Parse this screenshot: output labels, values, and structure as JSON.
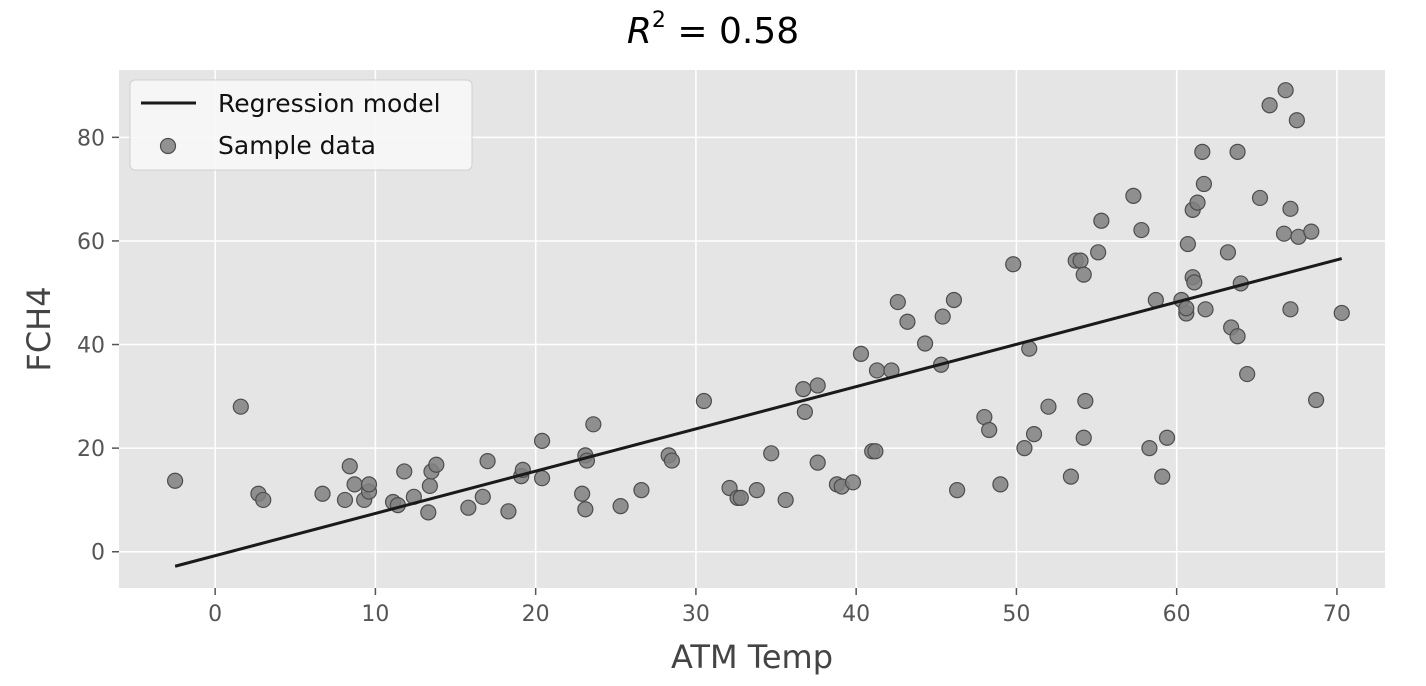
{
  "chart_data": {
    "type": "scatter",
    "title": {
      "var": "R",
      "sup": "2",
      "rest": " = 0.58"
    },
    "xlabel": "ATM Temp",
    "ylabel": "FCH4",
    "xlim": [
      -6,
      73
    ],
    "ylim": [
      -7,
      93
    ],
    "x_ticks": [
      0,
      10,
      20,
      30,
      40,
      50,
      60,
      70
    ],
    "y_ticks": [
      0,
      20,
      40,
      60,
      80
    ],
    "grid": true,
    "legend_position": "top-left",
    "background_color": "#e5e5e5",
    "grid_color": "#ffffff",
    "line_color": "#1a1a1a",
    "point_color": "#808080",
    "series": [
      {
        "name": "Regression model",
        "kind": "line",
        "x": [
          -2.5,
          70.3
        ],
        "y": [
          -2.8,
          56.6
        ]
      },
      {
        "name": "Sample data",
        "kind": "scatter",
        "points": [
          [
            -2.5,
            13.7
          ],
          [
            1.6,
            28.0
          ],
          [
            2.7,
            11.2
          ],
          [
            3.0,
            10.0
          ],
          [
            6.7,
            11.2
          ],
          [
            8.1,
            10.0
          ],
          [
            8.4,
            16.5
          ],
          [
            8.7,
            13.0
          ],
          [
            9.3,
            10.0
          ],
          [
            9.6,
            11.6
          ],
          [
            9.6,
            13.0
          ],
          [
            11.1,
            9.6
          ],
          [
            11.4,
            9.0
          ],
          [
            11.8,
            15.5
          ],
          [
            12.4,
            10.6
          ],
          [
            13.3,
            7.6
          ],
          [
            13.4,
            12.7
          ],
          [
            13.5,
            15.5
          ],
          [
            13.8,
            16.8
          ],
          [
            15.8,
            8.5
          ],
          [
            16.7,
            10.6
          ],
          [
            17.0,
            17.5
          ],
          [
            18.3,
            7.8
          ],
          [
            19.1,
            14.6
          ],
          [
            19.2,
            15.8
          ],
          [
            20.4,
            14.2
          ],
          [
            20.4,
            21.4
          ],
          [
            22.9,
            11.2
          ],
          [
            23.1,
            8.2
          ],
          [
            23.1,
            18.6
          ],
          [
            23.2,
            17.6
          ],
          [
            23.6,
            24.6
          ],
          [
            25.3,
            8.8
          ],
          [
            26.6,
            11.9
          ],
          [
            28.3,
            18.6
          ],
          [
            28.5,
            17.6
          ],
          [
            30.5,
            29.1
          ],
          [
            32.1,
            12.3
          ],
          [
            32.6,
            10.4
          ],
          [
            32.8,
            10.4
          ],
          [
            33.8,
            11.9
          ],
          [
            34.7,
            19.0
          ],
          [
            35.6,
            10.0
          ],
          [
            36.7,
            31.4
          ],
          [
            36.8,
            27.0
          ],
          [
            37.6,
            32.1
          ],
          [
            37.6,
            17.2
          ],
          [
            38.8,
            13.0
          ],
          [
            39.1,
            12.6
          ],
          [
            39.8,
            13.4
          ],
          [
            40.3,
            38.2
          ],
          [
            41.0,
            19.4
          ],
          [
            41.2,
            19.4
          ],
          [
            41.3,
            35.0
          ],
          [
            42.2,
            35.0
          ],
          [
            42.6,
            48.2
          ],
          [
            43.2,
            44.4
          ],
          [
            44.3,
            40.2
          ],
          [
            45.3,
            36.1
          ],
          [
            45.4,
            45.4
          ],
          [
            46.1,
            48.6
          ],
          [
            46.3,
            11.9
          ],
          [
            48.0,
            26.0
          ],
          [
            48.3,
            23.5
          ],
          [
            49.0,
            13.0
          ],
          [
            49.8,
            55.5
          ],
          [
            50.5,
            20.0
          ],
          [
            50.8,
            39.2
          ],
          [
            51.1,
            22.7
          ],
          [
            52.0,
            28.0
          ],
          [
            53.4,
            14.5
          ],
          [
            53.7,
            56.2
          ],
          [
            54.0,
            56.2
          ],
          [
            54.2,
            53.5
          ],
          [
            54.2,
            22.0
          ],
          [
            54.3,
            29.1
          ],
          [
            55.1,
            57.8
          ],
          [
            55.3,
            63.9
          ],
          [
            57.3,
            68.7
          ],
          [
            57.8,
            62.1
          ],
          [
            58.3,
            20.0
          ],
          [
            58.7,
            48.6
          ],
          [
            59.1,
            14.5
          ],
          [
            59.4,
            22.0
          ],
          [
            60.3,
            48.6
          ],
          [
            60.6,
            46.0
          ],
          [
            60.6,
            47.0
          ],
          [
            60.7,
            59.4
          ],
          [
            61.0,
            53.0
          ],
          [
            61.0,
            66.0
          ],
          [
            61.1,
            52.0
          ],
          [
            61.3,
            67.4
          ],
          [
            61.6,
            77.2
          ],
          [
            61.7,
            71.0
          ],
          [
            61.8,
            46.8
          ],
          [
            63.2,
            57.8
          ],
          [
            63.4,
            43.3
          ],
          [
            63.8,
            41.6
          ],
          [
            63.8,
            77.2
          ],
          [
            64.0,
            51.8
          ],
          [
            64.4,
            34.3
          ],
          [
            65.2,
            68.3
          ],
          [
            65.8,
            86.2
          ],
          [
            66.7,
            61.4
          ],
          [
            66.8,
            89.1
          ],
          [
            67.1,
            46.8
          ],
          [
            67.1,
            66.2
          ],
          [
            67.5,
            83.3
          ],
          [
            67.6,
            60.8
          ],
          [
            68.4,
            61.8
          ],
          [
            68.7,
            29.3
          ],
          [
            70.3,
            46.1
          ]
        ]
      }
    ]
  }
}
